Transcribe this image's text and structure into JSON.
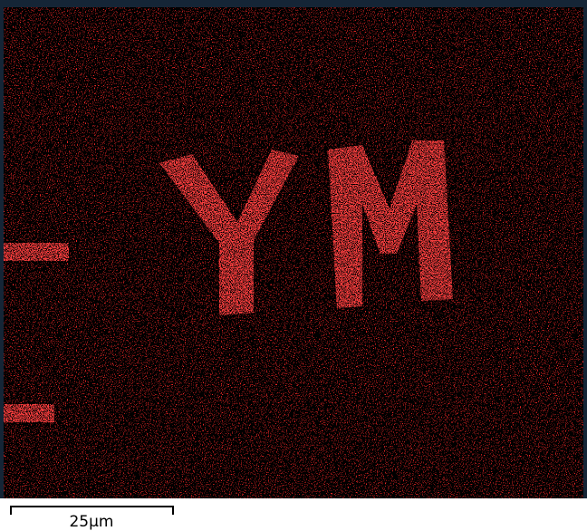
{
  "scale_bar": {
    "label": "25μm"
  }
}
